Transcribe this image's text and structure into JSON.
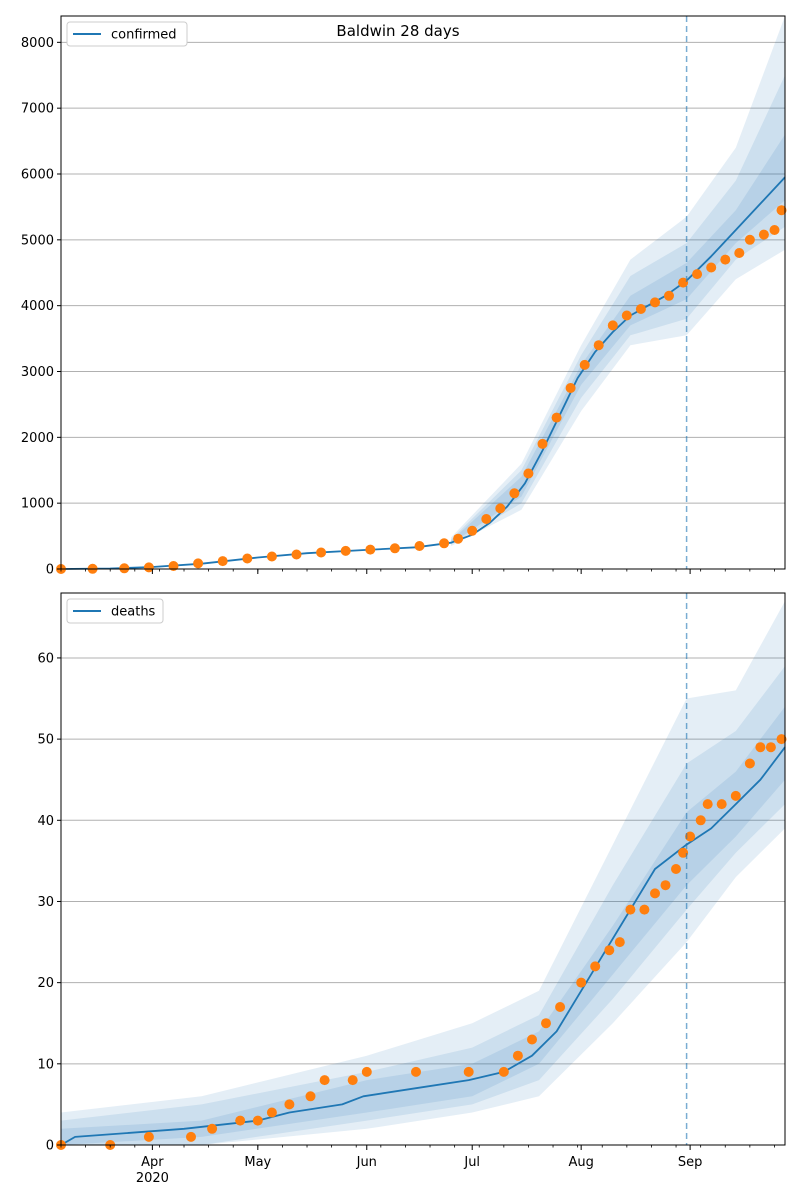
{
  "chart_data": [
    {
      "type": "line",
      "title": "Baldwin 28 days",
      "series_name": "confirmed",
      "x_start": "2020-03-06",
      "x_end": "2020-09-28",
      "xlim": [
        "2020-03-06",
        "2020-09-28"
      ],
      "ylim": [
        0,
        8400
      ],
      "yticks": [
        0,
        1000,
        2000,
        3000,
        4000,
        5000,
        6000,
        7000,
        8000
      ],
      "forecast_start": "2020-08-31",
      "grid": "horizontal",
      "legend": "top-left",
      "model_line": [
        [
          "2020-03-06",
          0
        ],
        [
          "2020-03-20",
          8
        ],
        [
          "2020-04-01",
          30
        ],
        [
          "2020-04-15",
          80
        ],
        [
          "2020-05-01",
          175
        ],
        [
          "2020-05-15",
          240
        ],
        [
          "2020-06-01",
          290
        ],
        [
          "2020-06-15",
          330
        ],
        [
          "2020-06-25",
          400
        ],
        [
          "2020-07-01",
          520
        ],
        [
          "2020-07-06",
          700
        ],
        [
          "2020-07-11",
          950
        ],
        [
          "2020-07-16",
          1300
        ],
        [
          "2020-07-21",
          1800
        ],
        [
          "2020-07-26",
          2350
        ],
        [
          "2020-07-31",
          2900
        ],
        [
          "2020-08-05",
          3300
        ],
        [
          "2020-08-10",
          3600
        ],
        [
          "2020-08-15",
          3850
        ],
        [
          "2020-08-20",
          4000
        ],
        [
          "2020-08-25",
          4150
        ],
        [
          "2020-08-31",
          4380
        ],
        [
          "2020-09-07",
          4750
        ],
        [
          "2020-09-14",
          5150
        ],
        [
          "2020-09-21",
          5550
        ],
        [
          "2020-09-28",
          5950
        ]
      ],
      "observed_points": [
        [
          "2020-03-06",
          0
        ],
        [
          "2020-03-15",
          3
        ],
        [
          "2020-03-24",
          10
        ],
        [
          "2020-03-31",
          25
        ],
        [
          "2020-04-07",
          45
        ],
        [
          "2020-04-14",
          85
        ],
        [
          "2020-04-21",
          120
        ],
        [
          "2020-04-28",
          160
        ],
        [
          "2020-05-05",
          190
        ],
        [
          "2020-05-12",
          220
        ],
        [
          "2020-05-19",
          250
        ],
        [
          "2020-05-26",
          275
        ],
        [
          "2020-06-02",
          295
        ],
        [
          "2020-06-09",
          315
        ],
        [
          "2020-06-16",
          350
        ],
        [
          "2020-06-23",
          390
        ],
        [
          "2020-06-27",
          460
        ],
        [
          "2020-07-01",
          580
        ],
        [
          "2020-07-05",
          760
        ],
        [
          "2020-07-09",
          920
        ],
        [
          "2020-07-13",
          1150
        ],
        [
          "2020-07-17",
          1450
        ],
        [
          "2020-07-21",
          1900
        ],
        [
          "2020-07-25",
          2300
        ],
        [
          "2020-07-29",
          2750
        ],
        [
          "2020-08-02",
          3100
        ],
        [
          "2020-08-06",
          3400
        ],
        [
          "2020-08-10",
          3700
        ],
        [
          "2020-08-14",
          3850
        ],
        [
          "2020-08-18",
          3950
        ],
        [
          "2020-08-22",
          4050
        ],
        [
          "2020-08-26",
          4150
        ],
        [
          "2020-08-30",
          4350
        ],
        [
          "2020-09-03",
          4480
        ],
        [
          "2020-09-07",
          4580
        ],
        [
          "2020-09-11",
          4700
        ],
        [
          "2020-09-15",
          4800
        ],
        [
          "2020-09-18",
          5000
        ],
        [
          "2020-09-22",
          5080
        ],
        [
          "2020-09-25",
          5150
        ],
        [
          "2020-09-27",
          5450
        ]
      ],
      "bands": [
        {
          "x": [
            "2020-06-25",
            "2020-07-15",
            "2020-08-01",
            "2020-08-15",
            "2020-08-31",
            "2020-09-14",
            "2020-09-28"
          ],
          "low": [
            350,
            900,
            2400,
            3400,
            3550,
            4400,
            4850
          ],
          "high": [
            480,
            1600,
            3400,
            4700,
            5350,
            6400,
            8400
          ]
        },
        {
          "x": [
            "2020-06-25",
            "2020-07-15",
            "2020-08-01",
            "2020-08-15",
            "2020-08-31",
            "2020-09-14",
            "2020-09-28"
          ],
          "low": [
            370,
            1000,
            2600,
            3550,
            3800,
            4700,
            5200
          ],
          "high": [
            450,
            1500,
            3250,
            4450,
            4950,
            5900,
            7500
          ]
        },
        {
          "x": [
            "2020-06-25",
            "2020-07-15",
            "2020-08-01",
            "2020-08-15",
            "2020-08-31",
            "2020-09-14",
            "2020-09-28"
          ],
          "low": [
            385,
            1100,
            2800,
            3700,
            4100,
            4950,
            5600
          ],
          "high": [
            430,
            1400,
            3100,
            4150,
            4650,
            5450,
            6600
          ]
        }
      ]
    },
    {
      "type": "line",
      "series_name": "deaths",
      "x_start": "2020-03-06",
      "x_end": "2020-09-28",
      "xlim": [
        "2020-03-06",
        "2020-09-28"
      ],
      "ylim": [
        0,
        68
      ],
      "yticks": [
        0,
        10,
        20,
        30,
        40,
        50,
        60
      ],
      "xticks": [
        "Apr",
        "May",
        "Jun",
        "Jul",
        "Aug",
        "Sep"
      ],
      "x_year_label": "2020",
      "forecast_start": "2020-08-31",
      "grid": "horizontal",
      "legend": "top-left",
      "model_line": [
        [
          "2020-03-06",
          0
        ],
        [
          "2020-03-10",
          1
        ],
        [
          "2020-04-10",
          2
        ],
        [
          "2020-05-01",
          3
        ],
        [
          "2020-05-10",
          4
        ],
        [
          "2020-05-25",
          5
        ],
        [
          "2020-05-31",
          6
        ],
        [
          "2020-06-15",
          7
        ],
        [
          "2020-06-30",
          8
        ],
        [
          "2020-07-10",
          9
        ],
        [
          "2020-07-18",
          11
        ],
        [
          "2020-07-25",
          14
        ],
        [
          "2020-08-01",
          19
        ],
        [
          "2020-08-08",
          24
        ],
        [
          "2020-08-15",
          29
        ],
        [
          "2020-08-22",
          34
        ],
        [
          "2020-08-31",
          37
        ],
        [
          "2020-09-07",
          39
        ],
        [
          "2020-09-14",
          42
        ],
        [
          "2020-09-21",
          45
        ],
        [
          "2020-09-28",
          49
        ]
      ],
      "observed_points": [
        [
          "2020-03-06",
          0
        ],
        [
          "2020-03-20",
          0
        ],
        [
          "2020-03-31",
          1
        ],
        [
          "2020-04-12",
          1
        ],
        [
          "2020-04-18",
          2
        ],
        [
          "2020-04-26",
          3
        ],
        [
          "2020-05-01",
          3
        ],
        [
          "2020-05-05",
          4
        ],
        [
          "2020-05-10",
          5
        ],
        [
          "2020-05-16",
          6
        ],
        [
          "2020-05-20",
          8
        ],
        [
          "2020-05-28",
          8
        ],
        [
          "2020-06-01",
          9
        ],
        [
          "2020-06-15",
          9
        ],
        [
          "2020-06-30",
          9
        ],
        [
          "2020-07-10",
          9
        ],
        [
          "2020-07-14",
          11
        ],
        [
          "2020-07-18",
          13
        ],
        [
          "2020-07-22",
          15
        ],
        [
          "2020-07-26",
          17
        ],
        [
          "2020-08-01",
          20
        ],
        [
          "2020-08-05",
          22
        ],
        [
          "2020-08-09",
          24
        ],
        [
          "2020-08-12",
          25
        ],
        [
          "2020-08-15",
          29
        ],
        [
          "2020-08-19",
          29
        ],
        [
          "2020-08-22",
          31
        ],
        [
          "2020-08-25",
          32
        ],
        [
          "2020-08-28",
          34
        ],
        [
          "2020-08-30",
          36
        ],
        [
          "2020-09-01",
          38
        ],
        [
          "2020-09-04",
          40
        ],
        [
          "2020-09-06",
          42
        ],
        [
          "2020-09-10",
          42
        ],
        [
          "2020-09-14",
          43
        ],
        [
          "2020-09-18",
          47
        ],
        [
          "2020-09-21",
          49
        ],
        [
          "2020-09-24",
          49
        ],
        [
          "2020-09-27",
          50
        ]
      ],
      "bands": [
        {
          "x": [
            "2020-03-06",
            "2020-04-15",
            "2020-06-01",
            "2020-07-01",
            "2020-07-20",
            "2020-08-10",
            "2020-08-31",
            "2020-09-14",
            "2020-09-28"
          ],
          "low": [
            0,
            0,
            2,
            4,
            6,
            15,
            25,
            33,
            39
          ],
          "high": [
            4,
            6,
            11,
            15,
            19,
            37,
            55,
            56,
            67
          ]
        },
        {
          "x": [
            "2020-03-06",
            "2020-04-15",
            "2020-06-01",
            "2020-07-01",
            "2020-07-20",
            "2020-08-10",
            "2020-08-31",
            "2020-09-14",
            "2020-09-28"
          ],
          "low": [
            0,
            0,
            3,
            5,
            8,
            18,
            29,
            36,
            42
          ],
          "high": [
            3,
            5,
            9,
            12,
            16,
            32,
            47,
            51,
            59
          ]
        },
        {
          "x": [
            "2020-03-06",
            "2020-04-15",
            "2020-06-01",
            "2020-07-01",
            "2020-07-20",
            "2020-08-10",
            "2020-08-31",
            "2020-09-14",
            "2020-09-28"
          ],
          "low": [
            0,
            1,
            4,
            6,
            10,
            21,
            32,
            38,
            45
          ],
          "high": [
            2,
            3,
            8,
            10,
            14,
            27,
            41,
            46,
            54
          ]
        }
      ]
    }
  ]
}
